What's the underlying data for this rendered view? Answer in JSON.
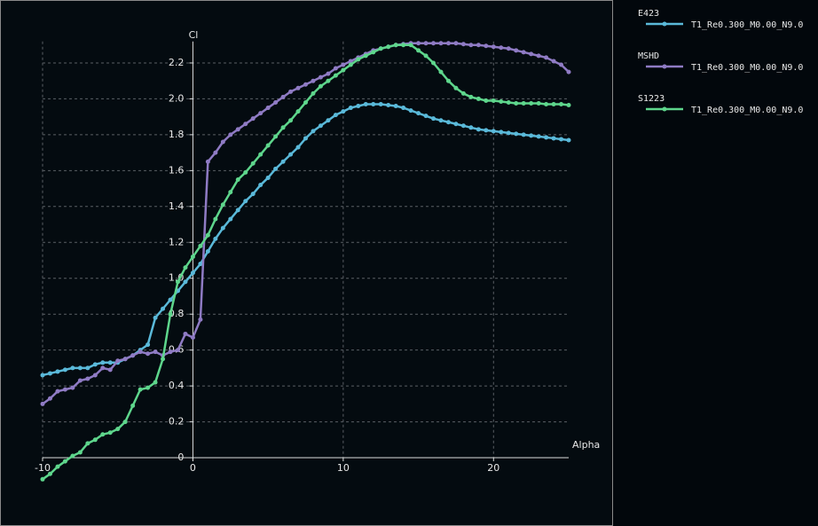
{
  "chart_data": {
    "type": "line",
    "x_label": "Alpha",
    "y_label": "Cl",
    "xlim": [
      -10,
      25
    ],
    "ylim": [
      -0.12,
      2.32
    ],
    "xticks": [
      -10,
      0,
      10,
      20
    ],
    "yticks": [
      0,
      0.2,
      0.4,
      0.6,
      0.8,
      {
        "value": 1,
        "label": "1.0"
      },
      1.2,
      1.4,
      1.6,
      1.8,
      {
        "value": 2,
        "label": "2.0"
      },
      2.2
    ],
    "grid": true,
    "series": [
      {
        "name": "E423",
        "polar": "T1_Re0.300_M0.00_N9.0",
        "color": "#5ab9d9",
        "x": [
          -10,
          -9.5,
          -9,
          -8.5,
          -8,
          -7.5,
          -7,
          -6.5,
          -6,
          -5.5,
          -5,
          -4.5,
          -4,
          -3.5,
          -3,
          -2.5,
          -2,
          -1.5,
          -1,
          -0.5,
          0,
          0.5,
          1,
          1.5,
          2,
          2.5,
          3,
          3.5,
          4,
          4.5,
          5,
          5.5,
          6,
          6.5,
          7,
          7.5,
          8,
          8.5,
          9,
          9.5,
          10,
          10.5,
          11,
          11.5,
          12,
          12.5,
          13,
          13.5,
          14,
          14.5,
          15,
          15.5,
          16,
          16.5,
          17,
          17.5,
          18,
          18.5,
          19,
          19.5,
          20,
          20.5,
          21,
          21.5,
          22,
          22.5,
          23,
          23.5,
          24,
          24.5,
          25
        ],
        "values": [
          0.46,
          0.47,
          0.48,
          0.49,
          0.5,
          0.5,
          0.5,
          0.52,
          0.53,
          0.53,
          0.53,
          0.55,
          0.57,
          0.6,
          0.63,
          0.78,
          0.83,
          0.88,
          0.93,
          0.98,
          1.03,
          1.08,
          1.15,
          1.22,
          1.28,
          1.33,
          1.38,
          1.43,
          1.47,
          1.52,
          1.56,
          1.61,
          1.65,
          1.69,
          1.73,
          1.78,
          1.82,
          1.85,
          1.88,
          1.91,
          1.93,
          1.95,
          1.96,
          1.97,
          1.97,
          1.97,
          1.965,
          1.96,
          1.95,
          1.935,
          1.92,
          1.905,
          1.89,
          1.88,
          1.87,
          1.86,
          1.85,
          1.84,
          1.83,
          1.825,
          1.82,
          1.815,
          1.81,
          1.805,
          1.8,
          1.795,
          1.79,
          1.785,
          1.78,
          1.775,
          1.77
        ]
      },
      {
        "name": "MSHD",
        "polar": "T1_Re0.300_M0.00_N9.0",
        "color": "#8f7bc4",
        "x": [
          -10,
          -9.5,
          -9,
          -8.5,
          -8,
          -7.5,
          -7,
          -6.5,
          -6,
          -5.5,
          -5,
          -4.5,
          -4,
          -3.5,
          -3,
          -2.5,
          -2,
          -1.5,
          -1,
          -0.5,
          0,
          0.5,
          1,
          1.5,
          2,
          2.5,
          3,
          3.5,
          4,
          4.5,
          5,
          5.5,
          6,
          6.5,
          7,
          7.5,
          8,
          8.5,
          9,
          9.5,
          10,
          10.5,
          11,
          11.5,
          12,
          12.5,
          13,
          13.5,
          14,
          14.5,
          15,
          15.5,
          16,
          16.5,
          17,
          17.5,
          18,
          18.5,
          19,
          19.5,
          20,
          20.5,
          21,
          21.5,
          22,
          22.5,
          23,
          23.5,
          24,
          24.5,
          25
        ],
        "values": [
          0.3,
          0.33,
          0.37,
          0.38,
          0.39,
          0.43,
          0.44,
          0.46,
          0.5,
          0.49,
          0.54,
          0.55,
          0.57,
          0.59,
          0.58,
          0.59,
          0.57,
          0.59,
          0.6,
          0.69,
          0.67,
          0.77,
          1.65,
          1.7,
          1.76,
          1.8,
          1.83,
          1.86,
          1.89,
          1.92,
          1.95,
          1.98,
          2.01,
          2.04,
          2.06,
          2.08,
          2.1,
          2.12,
          2.14,
          2.17,
          2.19,
          2.21,
          2.23,
          2.25,
          2.27,
          2.28,
          2.29,
          2.3,
          2.305,
          2.31,
          2.31,
          2.31,
          2.31,
          2.31,
          2.31,
          2.31,
          2.305,
          2.3,
          2.3,
          2.295,
          2.29,
          2.285,
          2.28,
          2.27,
          2.26,
          2.25,
          2.24,
          2.23,
          2.21,
          2.19,
          2.15
        ]
      },
      {
        "name": "S1223",
        "polar": "T1_Re0.300_M0.00_N9.0",
        "color": "#5ed68c",
        "x": [
          -10,
          -9.5,
          -9,
          -8.5,
          -8,
          -7.5,
          -7,
          -6.5,
          -6,
          -5.5,
          -5,
          -4.5,
          -4,
          -3.5,
          -3,
          -2.5,
          -2,
          -1.5,
          -1,
          -0.5,
          0,
          0.5,
          1,
          1.5,
          2,
          2.5,
          3,
          3.5,
          4,
          4.5,
          5,
          5.5,
          6,
          6.5,
          7,
          7.5,
          8,
          8.5,
          9,
          9.5,
          10,
          10.5,
          11,
          11.5,
          12,
          12.5,
          13,
          13.5,
          14,
          14.5,
          15,
          15.5,
          16,
          16.5,
          17,
          17.5,
          18,
          18.5,
          19,
          19.5,
          20,
          20.5,
          21,
          21.5,
          22,
          22.5,
          23,
          23.5,
          24,
          24.5,
          25
        ],
        "values": [
          -0.12,
          -0.09,
          -0.05,
          -0.02,
          0.01,
          0.03,
          0.08,
          0.1,
          0.13,
          0.14,
          0.16,
          0.2,
          0.29,
          0.38,
          0.39,
          0.42,
          0.55,
          0.8,
          0.98,
          1.06,
          1.12,
          1.18,
          1.24,
          1.33,
          1.41,
          1.48,
          1.55,
          1.59,
          1.64,
          1.69,
          1.74,
          1.79,
          1.84,
          1.88,
          1.93,
          1.98,
          2.03,
          2.07,
          2.1,
          2.13,
          2.16,
          2.19,
          2.22,
          2.24,
          2.26,
          2.28,
          2.29,
          2.3,
          2.3,
          2.3,
          2.27,
          2.24,
          2.2,
          2.15,
          2.1,
          2.06,
          2.03,
          2.01,
          2,
          1.99,
          1.99,
          1.985,
          1.98,
          1.975,
          1.975,
          1.975,
          1.975,
          1.97,
          1.97,
          1.97,
          1.965
        ]
      }
    ]
  }
}
